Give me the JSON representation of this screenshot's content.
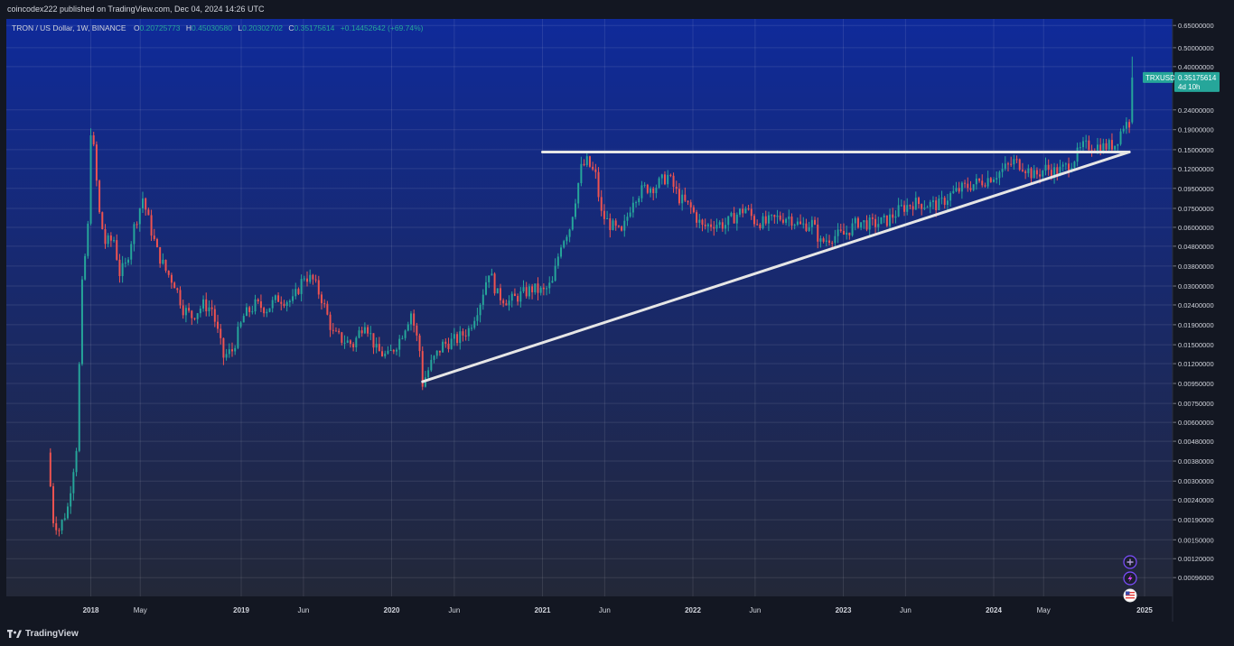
{
  "header": {
    "published_text": "coincodex222 published on TradingView.com, Dec 04, 2024 14:26 UTC"
  },
  "legend": {
    "symbol": "TRON / US Dollar, 1W, BINANCE",
    "o_label": "O",
    "o_value": "0.20725773",
    "h_label": "H",
    "h_value": "0.45030580",
    "l_label": "L",
    "l_value": "0.20302702",
    "c_label": "C",
    "c_value": "0.35175614",
    "change": "+0.14452642 (+69.74%)"
  },
  "price_tag": {
    "ticker": "TRXUSD",
    "price": "0.35175614",
    "countdown": "4d 10h"
  },
  "footer": {
    "brand": "TradingView"
  },
  "colors": {
    "up": "#26a69a",
    "down": "#ef5350",
    "line": "#e6e6e6",
    "grid": "rgba(255,255,255,0.10)",
    "axis_text": "#d1d4dc",
    "bg_top": "#0f2a9a",
    "bg_bottom": "#232838"
  },
  "chart_data": {
    "type": "candlestick",
    "scale": "log",
    "interval": "1W",
    "y_ticks": [
      "0.65000000",
      "0.50000000",
      "0.40000000",
      "0.24000000",
      "0.19000000",
      "0.15000000",
      "0.12000000",
      "0.09500000",
      "0.07500000",
      "0.06000000",
      "0.04800000",
      "0.03800000",
      "0.03000000",
      "0.02400000",
      "0.01900000",
      "0.01500000",
      "0.01200000",
      "0.00950000",
      "0.00750000",
      "0.00600000",
      "0.00480000",
      "0.00380000",
      "0.00300000",
      "0.00240000",
      "0.00190000",
      "0.00150000",
      "0.00120000",
      "0.00096000"
    ],
    "x_ticks": [
      "2018",
      "May",
      "2019",
      "Jun",
      "2020",
      "Jun",
      "2021",
      "Jun",
      "2022",
      "Jun",
      "2023",
      "Jun",
      "2024",
      "May",
      "2025"
    ],
    "x_tick_dates": [
      "2018-01-01",
      "2018-05-01",
      "2019-01-01",
      "2019-06-01",
      "2020-01-01",
      "2020-06-01",
      "2021-01-01",
      "2021-06-01",
      "2022-01-01",
      "2022-06-01",
      "2023-01-01",
      "2023-06-01",
      "2024-01-01",
      "2024-05-01",
      "2025-01-01"
    ],
    "x_range": [
      "2017-06-10",
      "2025-03-10"
    ],
    "y_range": [
      0.00082,
      0.68
    ],
    "last_price": 0.35175614,
    "trendlines": [
      {
        "name": "resistance",
        "from": [
          "2021-01-01",
          0.146
        ],
        "to": [
          "2024-11-25",
          0.146
        ]
      },
      {
        "name": "support",
        "from": [
          "2020-03-16",
          0.0097
        ],
        "to": [
          "2024-11-25",
          0.146
        ]
      }
    ],
    "price_path": [
      [
        "2017-09-18",
        0.0042
      ],
      [
        "2017-10-02",
        0.0019
      ],
      [
        "2017-10-16",
        0.0017
      ],
      [
        "2017-11-06",
        0.0022
      ],
      [
        "2017-11-27",
        0.0045
      ],
      [
        "2017-12-11",
        0.03
      ],
      [
        "2017-12-25",
        0.06
      ],
      [
        "2018-01-01",
        0.19
      ],
      [
        "2018-01-08",
        0.15
      ],
      [
        "2018-01-22",
        0.07
      ],
      [
        "2018-02-05",
        0.05
      ],
      [
        "2018-02-26",
        0.052
      ],
      [
        "2018-03-12",
        0.035
      ],
      [
        "2018-03-26",
        0.038
      ],
      [
        "2018-04-16",
        0.06
      ],
      [
        "2018-05-07",
        0.085
      ],
      [
        "2018-05-21",
        0.065
      ],
      [
        "2018-06-11",
        0.045
      ],
      [
        "2018-07-02",
        0.036
      ],
      [
        "2018-07-23",
        0.031
      ],
      [
        "2018-08-13",
        0.023
      ],
      [
        "2018-09-03",
        0.021
      ],
      [
        "2018-10-01",
        0.024
      ],
      [
        "2018-10-22",
        0.023
      ],
      [
        "2018-11-19",
        0.013
      ],
      [
        "2018-12-10",
        0.014
      ],
      [
        "2019-01-07",
        0.021
      ],
      [
        "2019-02-04",
        0.024
      ],
      [
        "2019-03-04",
        0.023
      ],
      [
        "2019-04-01",
        0.026
      ],
      [
        "2019-05-06",
        0.025
      ],
      [
        "2019-06-03",
        0.034
      ],
      [
        "2019-06-24",
        0.032
      ],
      [
        "2019-07-15",
        0.026
      ],
      [
        "2019-08-12",
        0.017
      ],
      [
        "2019-09-02",
        0.016
      ],
      [
        "2019-09-30",
        0.015
      ],
      [
        "2019-10-28",
        0.02
      ],
      [
        "2019-11-25",
        0.014
      ],
      [
        "2019-12-23",
        0.013
      ],
      [
        "2020-01-20",
        0.016
      ],
      [
        "2020-02-17",
        0.022
      ],
      [
        "2020-03-09",
        0.014
      ],
      [
        "2020-03-16",
        0.0095
      ],
      [
        "2020-04-06",
        0.012
      ],
      [
        "2020-05-04",
        0.015
      ],
      [
        "2020-06-08",
        0.016
      ],
      [
        "2020-07-06",
        0.018
      ],
      [
        "2020-08-03",
        0.025
      ],
      [
        "2020-08-24",
        0.036
      ],
      [
        "2020-09-14",
        0.027
      ],
      [
        "2020-10-12",
        0.025
      ],
      [
        "2020-11-09",
        0.027
      ],
      [
        "2020-12-07",
        0.029
      ],
      [
        "2021-01-04",
        0.028
      ],
      [
        "2021-01-25",
        0.031
      ],
      [
        "2021-02-15",
        0.05
      ],
      [
        "2021-03-08",
        0.06
      ],
      [
        "2021-04-05",
        0.12
      ],
      [
        "2021-04-19",
        0.13
      ],
      [
        "2021-05-10",
        0.11
      ],
      [
        "2021-05-24",
        0.07
      ],
      [
        "2021-06-14",
        0.062
      ],
      [
        "2021-07-12",
        0.055
      ],
      [
        "2021-08-09",
        0.085
      ],
      [
        "2021-09-06",
        0.095
      ],
      [
        "2021-10-04",
        0.098
      ],
      [
        "2021-11-01",
        0.11
      ],
      [
        "2021-11-29",
        0.085
      ],
      [
        "2021-12-27",
        0.075
      ],
      [
        "2022-01-24",
        0.06
      ],
      [
        "2022-02-21",
        0.063
      ],
      [
        "2022-03-21",
        0.062
      ],
      [
        "2022-04-18",
        0.07
      ],
      [
        "2022-05-09",
        0.075
      ],
      [
        "2022-05-30",
        0.065
      ],
      [
        "2022-06-27",
        0.063
      ],
      [
        "2022-07-25",
        0.067
      ],
      [
        "2022-08-22",
        0.068
      ],
      [
        "2022-09-19",
        0.061
      ],
      [
        "2022-10-17",
        0.063
      ],
      [
        "2022-11-07",
        0.05
      ],
      [
        "2022-12-05",
        0.054
      ],
      [
        "2023-01-02",
        0.055
      ],
      [
        "2023-02-06",
        0.064
      ],
      [
        "2023-03-13",
        0.062
      ],
      [
        "2023-04-17",
        0.065
      ],
      [
        "2023-05-22",
        0.075
      ],
      [
        "2023-06-19",
        0.08
      ],
      [
        "2023-07-17",
        0.079
      ],
      [
        "2023-08-21",
        0.078
      ],
      [
        "2023-09-18",
        0.088
      ],
      [
        "2023-10-16",
        0.095
      ],
      [
        "2023-11-13",
        0.1
      ],
      [
        "2023-12-11",
        0.105
      ],
      [
        "2024-01-15",
        0.115
      ],
      [
        "2024-02-19",
        0.13
      ],
      [
        "2024-03-11",
        0.125
      ],
      [
        "2024-04-08",
        0.11
      ],
      [
        "2024-05-06",
        0.12
      ],
      [
        "2024-06-03",
        0.115
      ],
      [
        "2024-07-01",
        0.125
      ],
      [
        "2024-08-05",
        0.155
      ],
      [
        "2024-08-26",
        0.158
      ],
      [
        "2024-09-23",
        0.155
      ],
      [
        "2024-10-21",
        0.16
      ],
      [
        "2024-11-11",
        0.2
      ],
      [
        "2024-11-25",
        0.2072
      ],
      [
        "2024-12-02",
        0.3518
      ]
    ]
  }
}
